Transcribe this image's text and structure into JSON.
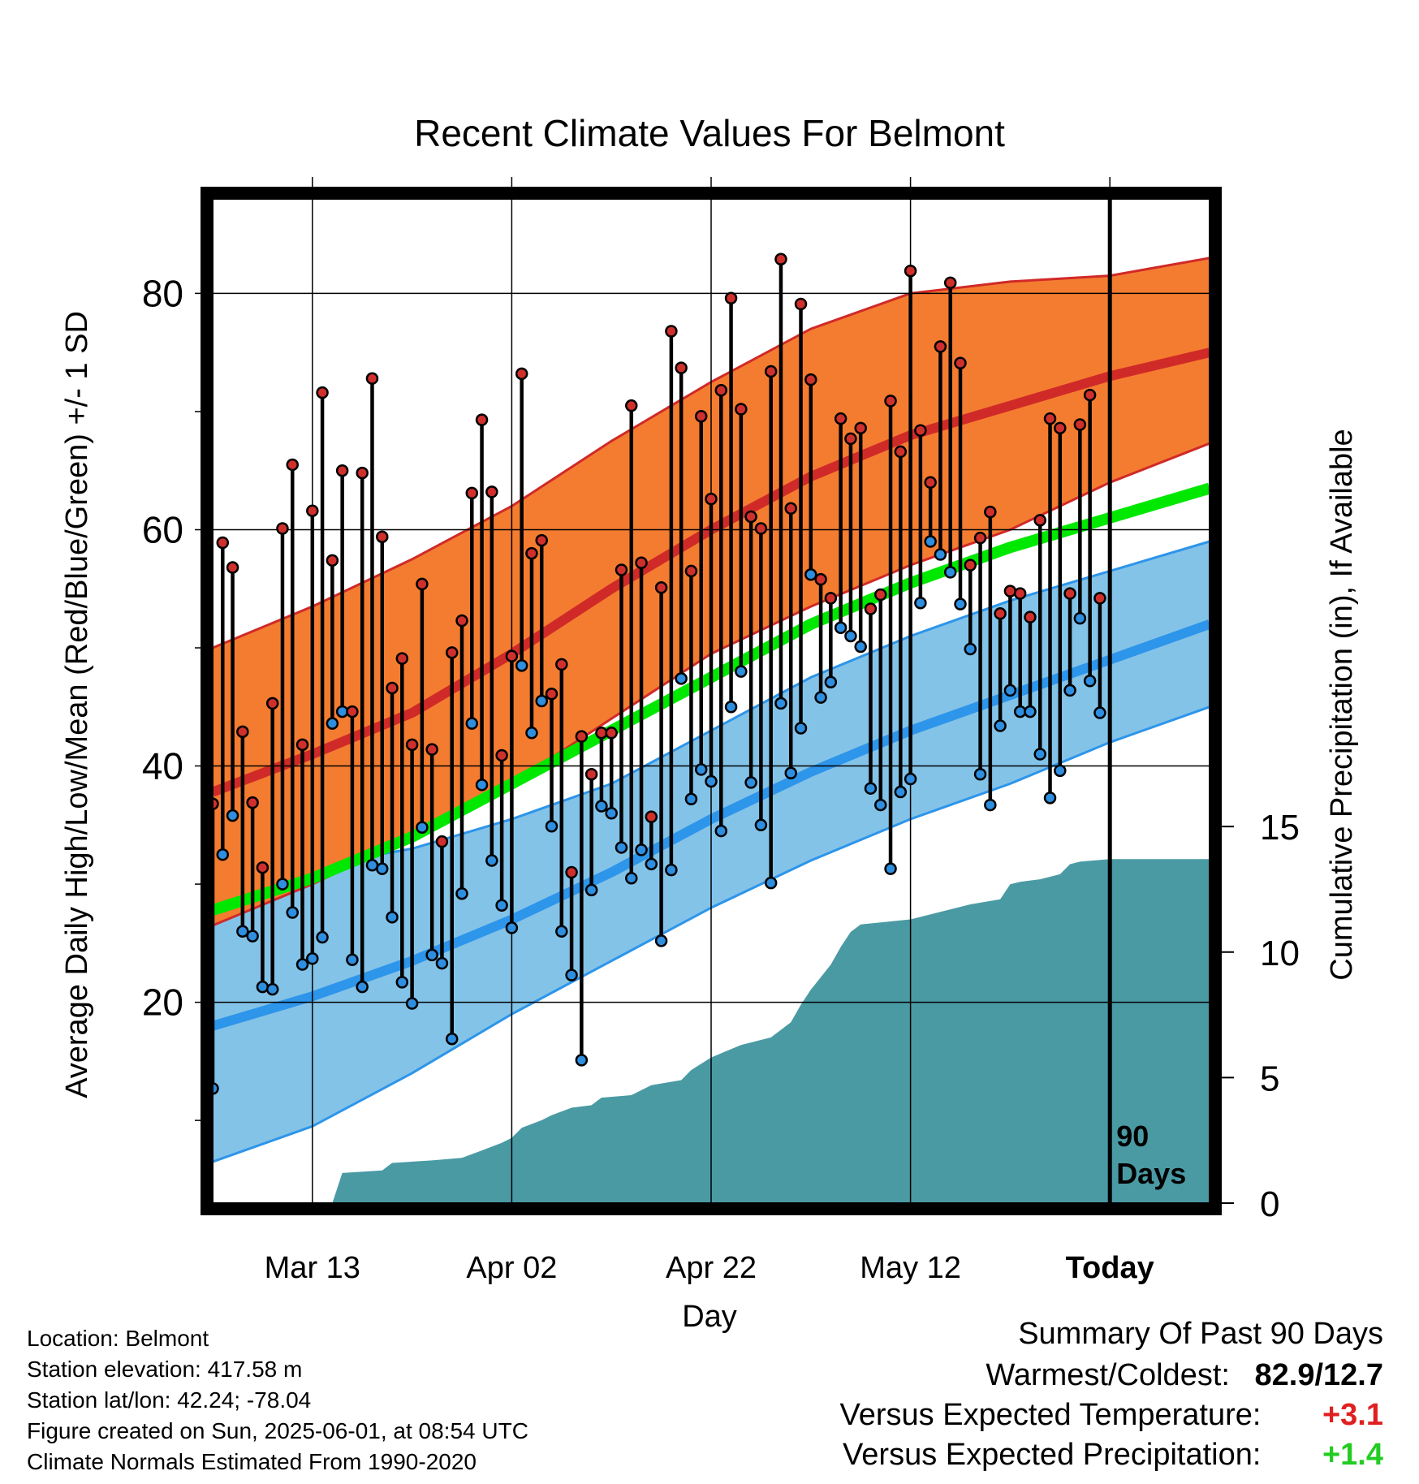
{
  "chart_data": {
    "type": "line",
    "title": "Recent Climate Values For Belmont",
    "xlabel": "Day",
    "ylabel_left": "Average Daily High/Low/Mean (Red/Blue/Green) +/- 1 SD",
    "ylabel_right": "Cumulative Precipitation (in), If Available",
    "x_tick_labels": [
      "Mar 13",
      "Apr 02",
      "Apr 22",
      "May 12",
      "Today"
    ],
    "x_range_days": [
      1,
      101
    ],
    "x_tick_days": [
      11,
      31,
      51,
      71,
      91
    ],
    "today_day": 91,
    "today_marker_label": [
      "90",
      "Days"
    ],
    "ylim_left": [
      3,
      88
    ],
    "y_ticks_left": [
      20,
      40,
      60,
      80
    ],
    "y_minor_left": [
      10,
      30,
      50,
      70
    ],
    "ylim_right": [
      0,
      40
    ],
    "y_ticks_right": [
      0,
      5,
      10,
      15
    ],
    "grid": true,
    "normals": {
      "high_mean": [
        [
          1,
          37.8
        ],
        [
          11,
          41
        ],
        [
          21,
          44.5
        ],
        [
          31,
          49.5
        ],
        [
          41,
          55
        ],
        [
          51,
          60
        ],
        [
          61,
          64.5
        ],
        [
          71,
          68
        ],
        [
          81,
          70.5
        ],
        [
          91,
          73
        ],
        [
          101,
          75
        ]
      ],
      "high_sd_upper": [
        [
          1,
          50
        ],
        [
          11,
          53.5
        ],
        [
          21,
          57.5
        ],
        [
          31,
          62
        ],
        [
          41,
          67.5
        ],
        [
          51,
          72.5
        ],
        [
          61,
          77
        ],
        [
          71,
          80
        ],
        [
          81,
          81
        ],
        [
          91,
          81.5
        ],
        [
          101,
          83
        ]
      ],
      "high_sd_lower": [
        [
          1,
          26.5
        ],
        [
          11,
          30
        ],
        [
          21,
          34
        ],
        [
          31,
          38.5
        ],
        [
          41,
          44
        ],
        [
          51,
          49.5
        ],
        [
          61,
          53.5
        ],
        [
          71,
          57
        ],
        [
          81,
          60
        ],
        [
          91,
          64
        ],
        [
          101,
          67.3
        ]
      ],
      "low_mean": [
        [
          1,
          18
        ],
        [
          11,
          20.5
        ],
        [
          21,
          23.5
        ],
        [
          31,
          27
        ],
        [
          41,
          31
        ],
        [
          51,
          35.5
        ],
        [
          61,
          39.5
        ],
        [
          71,
          43
        ],
        [
          81,
          46
        ],
        [
          91,
          49
        ],
        [
          101,
          52
        ]
      ],
      "low_sd_upper": [
        [
          1,
          30
        ],
        [
          11,
          31.5
        ],
        [
          21,
          33
        ],
        [
          31,
          35.5
        ],
        [
          41,
          38.5
        ],
        [
          51,
          43
        ],
        [
          61,
          47.5
        ],
        [
          71,
          51
        ],
        [
          81,
          54
        ],
        [
          91,
          56.5
        ],
        [
          101,
          59
        ]
      ],
      "low_sd_lower": [
        [
          1,
          6.5
        ],
        [
          11,
          9.5
        ],
        [
          21,
          14
        ],
        [
          31,
          19
        ],
        [
          41,
          23.5
        ],
        [
          51,
          28
        ],
        [
          61,
          32
        ],
        [
          71,
          35.5
        ],
        [
          81,
          38.5
        ],
        [
          91,
          42
        ],
        [
          101,
          45
        ]
      ],
      "avg_mean": [
        [
          1,
          27.8
        ],
        [
          11,
          30.5
        ],
        [
          21,
          34
        ],
        [
          31,
          38.5
        ],
        [
          41,
          43
        ],
        [
          51,
          47.5
        ],
        [
          61,
          52
        ],
        [
          71,
          55.5
        ],
        [
          81,
          58.5
        ],
        [
          91,
          61
        ],
        [
          101,
          63.5
        ]
      ]
    },
    "daily": {
      "day": [
        1,
        2,
        3,
        4,
        5,
        6,
        7,
        8,
        9,
        10,
        11,
        12,
        13,
        14,
        15,
        16,
        17,
        18,
        19,
        20,
        21,
        22,
        23,
        24,
        25,
        26,
        27,
        28,
        29,
        30,
        31,
        32,
        33,
        34,
        35,
        36,
        37,
        38,
        39,
        40,
        41,
        42,
        43,
        44,
        45,
        46,
        47,
        48,
        49,
        50,
        51,
        52,
        53,
        54,
        55,
        56,
        57,
        58,
        59,
        60,
        61,
        62,
        63,
        64,
        65,
        66,
        67,
        68,
        69,
        70,
        71,
        72,
        73,
        74,
        75,
        76,
        77,
        78,
        79,
        80,
        81,
        82,
        83,
        84,
        85,
        86,
        87,
        88,
        89,
        90
      ],
      "high": [
        36.8,
        58.9,
        56.8,
        42.9,
        36.9,
        31.4,
        45.3,
        60.1,
        65.5,
        41.8,
        61.6,
        71.6,
        57.4,
        65.0,
        44.6,
        64.8,
        72.8,
        59.4,
        46.6,
        49.1,
        41.8,
        55.4,
        41.4,
        33.6,
        49.6,
        52.3,
        63.1,
        69.3,
        63.2,
        40.9,
        49.3,
        73.2,
        58.0,
        59.1,
        46.1,
        48.6,
        31.0,
        42.5,
        39.3,
        42.8,
        42.8,
        56.6,
        70.5,
        57.2,
        35.7,
        55.1,
        76.8,
        73.7,
        56.5,
        69.6,
        62.6,
        71.8,
        79.6,
        70.2,
        61.1,
        60.1,
        73.4,
        82.9,
        61.8,
        79.1,
        72.7,
        55.8,
        54.2,
        69.4,
        67.7,
        68.6,
        53.3,
        54.5,
        70.9,
        66.6,
        81.9,
        68.4,
        64.0,
        75.5,
        80.9,
        74.1,
        57.0,
        59.3,
        61.5,
        52.9,
        54.8,
        54.6,
        52.6,
        60.8,
        69.4,
        68.6,
        54.6,
        68.9,
        71.4,
        54.2
      ],
      "low": [
        12.7,
        32.5,
        35.8,
        26.0,
        25.6,
        21.3,
        21.1,
        30.0,
        27.6,
        23.2,
        23.7,
        25.5,
        43.6,
        44.6,
        23.6,
        21.3,
        31.6,
        31.3,
        27.2,
        21.7,
        19.9,
        34.8,
        24.0,
        23.3,
        16.9,
        29.2,
        43.6,
        38.4,
        32.0,
        28.2,
        26.3,
        48.5,
        42.8,
        45.5,
        34.9,
        26.0,
        22.3,
        15.1,
        29.5,
        36.6,
        36.0,
        33.1,
        30.5,
        32.9,
        31.7,
        25.2,
        31.2,
        47.4,
        37.2,
        39.7,
        38.7,
        34.5,
        45.0,
        48.0,
        38.6,
        35.0,
        30.1,
        45.3,
        39.4,
        43.2,
        56.2,
        45.8,
        47.1,
        51.7,
        51.0,
        50.1,
        38.1,
        36.7,
        31.3,
        37.8,
        38.9,
        53.8,
        59.0,
        57.9,
        56.4,
        53.7,
        49.9,
        39.3,
        36.7,
        43.4,
        46.4,
        44.6,
        44.6,
        41.0,
        37.3,
        39.6,
        46.4,
        52.5,
        47.2,
        44.5
      ]
    },
    "precip_cumulative": [
      [
        1,
        0
      ],
      [
        13,
        0
      ],
      [
        14,
        1.2
      ],
      [
        18,
        1.3
      ],
      [
        19,
        1.6
      ],
      [
        23,
        1.7
      ],
      [
        26,
        1.8
      ],
      [
        28,
        2.1
      ],
      [
        30,
        2.4
      ],
      [
        31,
        2.6
      ],
      [
        32,
        3.0
      ],
      [
        34,
        3.3
      ],
      [
        35,
        3.5
      ],
      [
        37,
        3.8
      ],
      [
        39,
        3.9
      ],
      [
        40,
        4.2
      ],
      [
        43,
        4.3
      ],
      [
        45,
        4.7
      ],
      [
        48,
        4.9
      ],
      [
        49,
        5.3
      ],
      [
        51,
        5.8
      ],
      [
        54,
        6.3
      ],
      [
        57,
        6.6
      ],
      [
        59,
        7.2
      ],
      [
        60,
        7.9
      ],
      [
        61,
        8.5
      ],
      [
        62,
        9.0
      ],
      [
        63,
        9.5
      ],
      [
        64,
        10.2
      ],
      [
        65,
        10.8
      ],
      [
        66,
        11.1
      ],
      [
        71,
        11.3
      ],
      [
        74,
        11.6
      ],
      [
        77,
        11.9
      ],
      [
        80,
        12.1
      ],
      [
        81,
        12.7
      ],
      [
        82,
        12.8
      ],
      [
        84,
        12.9
      ],
      [
        86,
        13.1
      ],
      [
        87,
        13.5
      ],
      [
        88,
        13.6
      ],
      [
        91,
        13.7
      ],
      [
        101,
        13.7
      ]
    ],
    "colors": {
      "high_band": "#f47c30",
      "high_line": "#d02a28",
      "low_band": "#84c3e8",
      "low_line": "#2d95ea",
      "mean_line": "#00e800",
      "precip": "#4a9aa4",
      "high_dot": "#d0302c",
      "low_dot": "#2e8ee0"
    }
  },
  "footer": {
    "location": "Location: Belmont",
    "elevation": "Station elevation: 417.58 m",
    "latlon": "Station lat/lon: 42.24; -78.04",
    "created": "Figure created on Sun, 2025-06-01, at 08:54 UTC",
    "normals": "Climate Normals Estimated From 1990-2020"
  },
  "summary": {
    "heading": "Summary Of Past 90 Days",
    "warm_cold_label": "Warmest/Coldest:",
    "warm_cold_value": "82.9/12.7",
    "temp_label": "Versus Expected Temperature:",
    "temp_value": "+3.1",
    "temp_color": "#e02020",
    "precip_label": "Versus Expected Precipitation:",
    "precip_value": "+1.4",
    "precip_color": "#22cc22"
  }
}
